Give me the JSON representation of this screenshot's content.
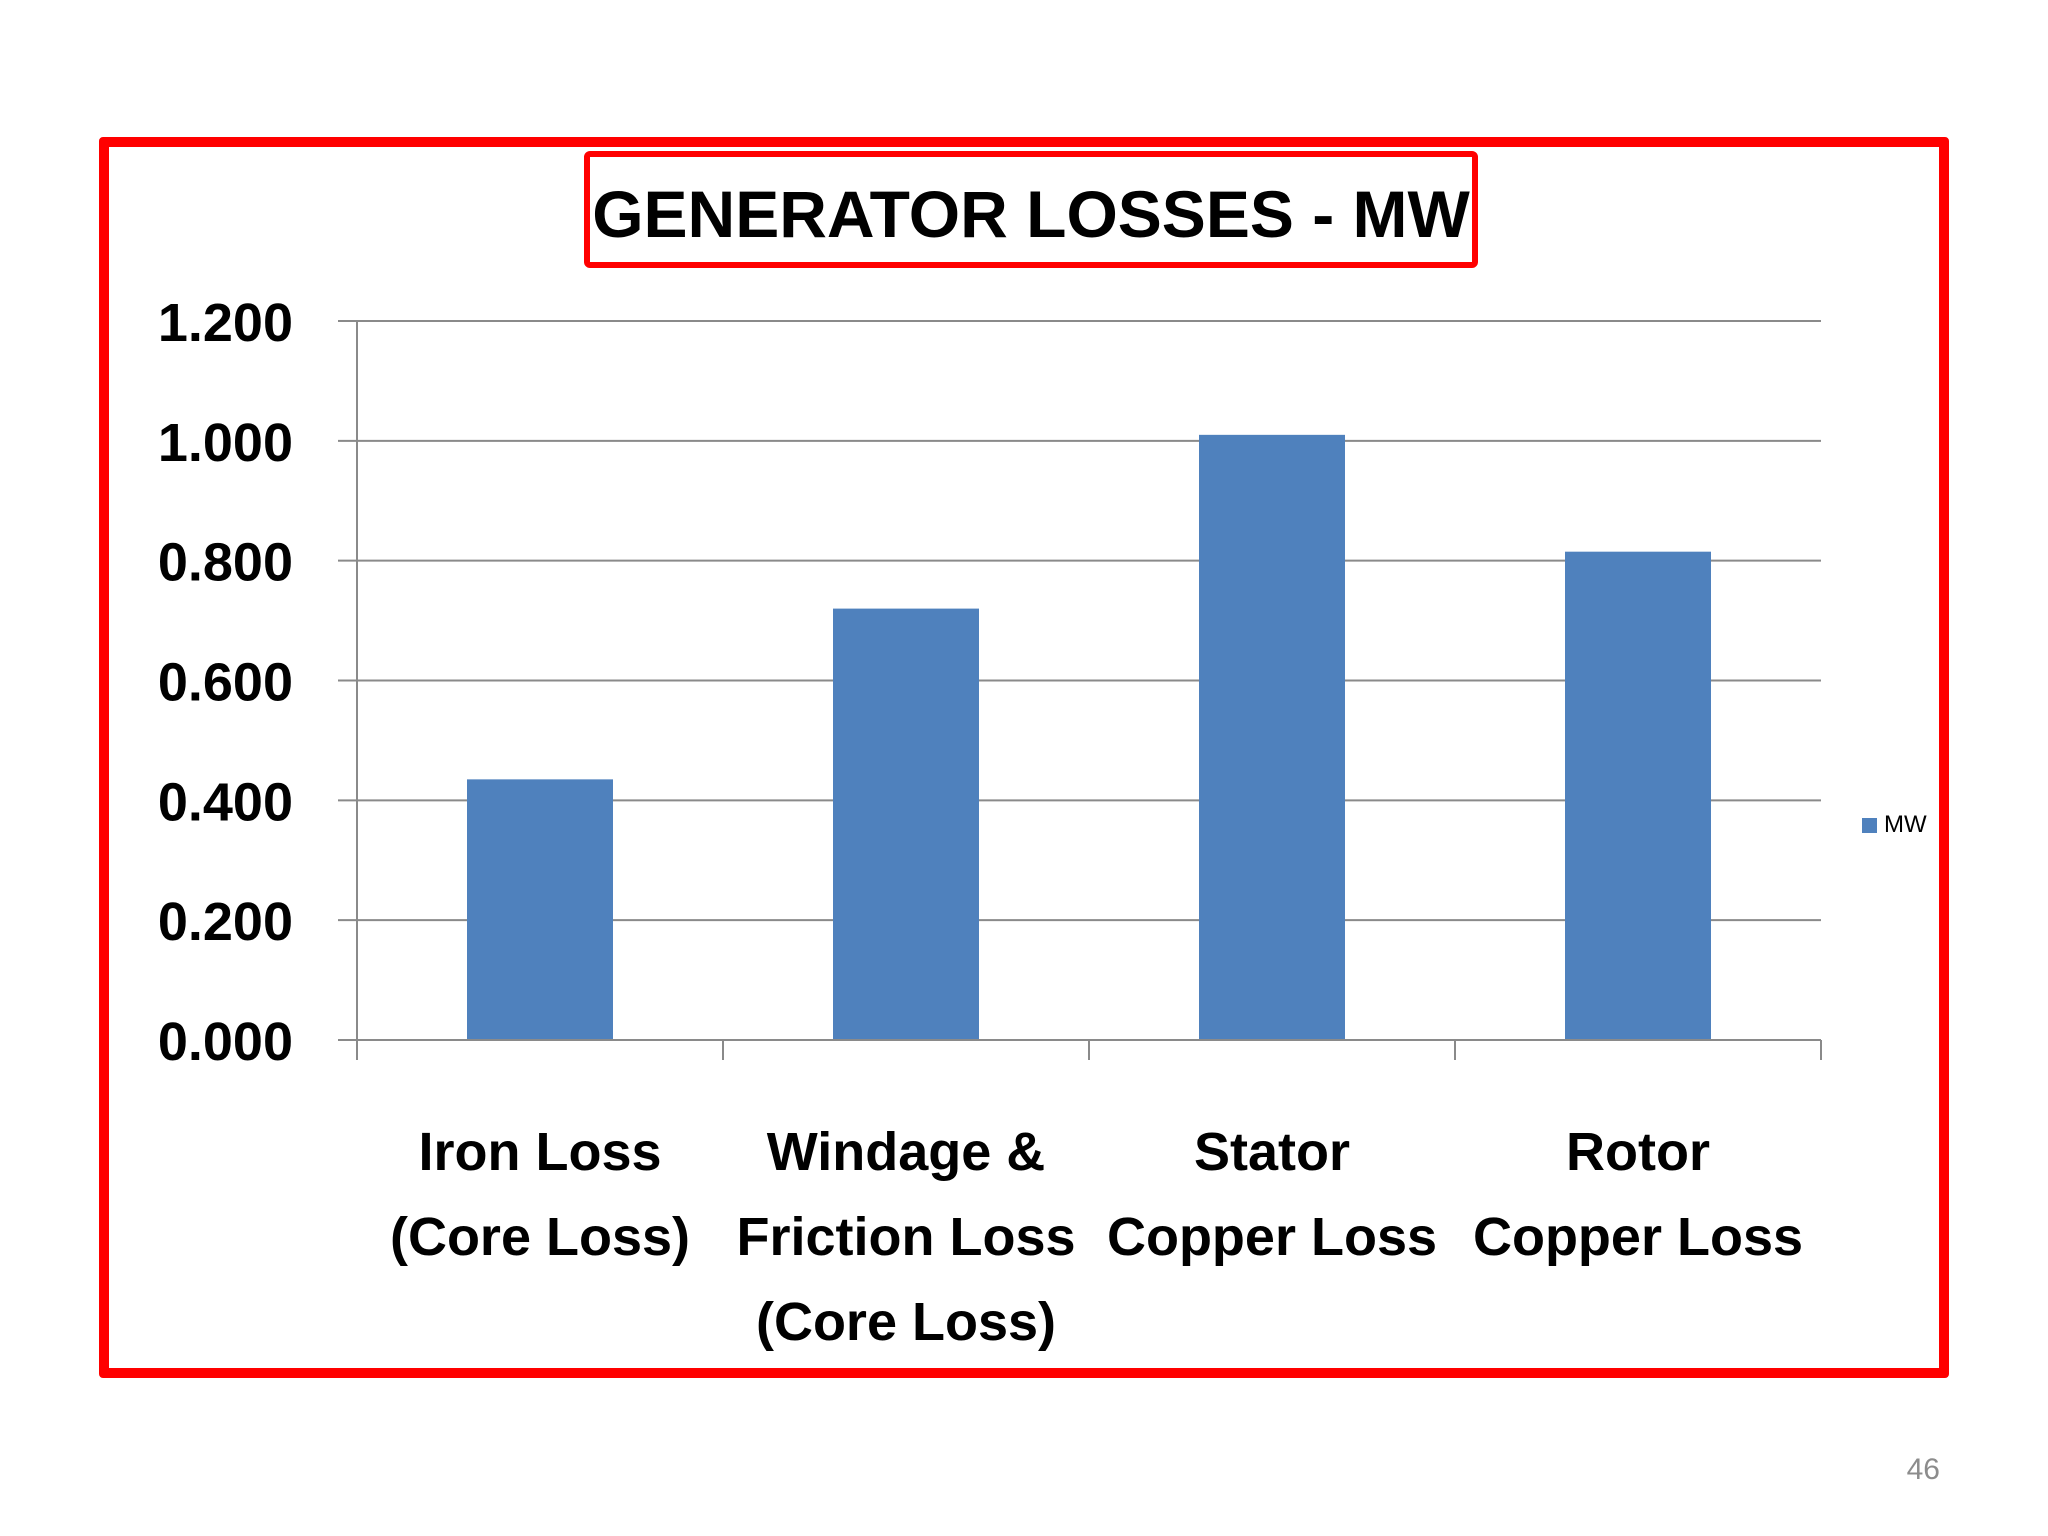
{
  "slide": {
    "page_number": "46",
    "frame_color": "#ff0000"
  },
  "chart_data": {
    "type": "bar",
    "title": "GENERATOR LOSSES - MW",
    "categories": [
      [
        "Iron Loss",
        "(Core Loss)"
      ],
      [
        "Windage &",
        "Friction Loss",
        "(Core Loss)"
      ],
      [
        "Stator",
        "Copper Loss"
      ],
      [
        "Rotor",
        "Copper Loss"
      ]
    ],
    "series": [
      {
        "name": "MW",
        "color": "#4f81bd",
        "values": [
          0.435,
          0.72,
          1.01,
          0.815
        ]
      }
    ],
    "ylim": [
      0,
      1.2
    ],
    "yticks": [
      "0.000",
      "0.200",
      "0.400",
      "0.600",
      "0.800",
      "1.000",
      "1.200"
    ],
    "ytick_values": [
      0,
      0.2,
      0.4,
      0.6,
      0.8,
      1.0,
      1.2
    ],
    "xlabel": "",
    "ylabel": "",
    "grid": true,
    "legend_position": "right"
  }
}
